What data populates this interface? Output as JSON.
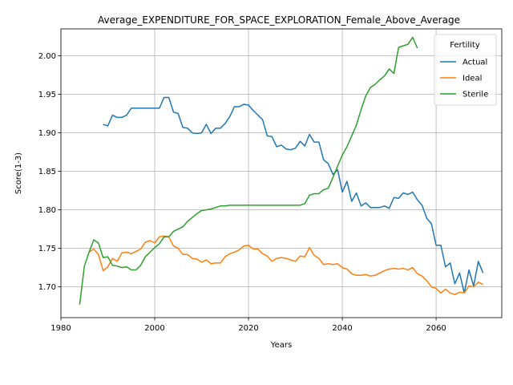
{
  "chart_data": {
    "type": "line",
    "title": "Average_EXPENDITURE_FOR_SPACE_EXPLORATION_Female_Above_Average",
    "xlabel": "Years",
    "ylabel": "Score(1-3)",
    "xlim": [
      1980,
      2074
    ],
    "ylim": [
      1.66,
      2.035
    ],
    "xticks": [
      1980,
      2000,
      2020,
      2040,
      2060
    ],
    "yticks": [
      1.7,
      1.75,
      1.8,
      1.85,
      1.9,
      1.95,
      2.0
    ],
    "xtick_labels": [
      "1980",
      "2000",
      "2020",
      "2040",
      "2060"
    ],
    "ytick_labels": [
      "1.70",
      "1.75",
      "1.80",
      "1.85",
      "1.90",
      "1.95",
      "2.00"
    ],
    "grid": true,
    "legend": {
      "title": "Fertility",
      "position": "top-right"
    },
    "series": [
      {
        "name": "Actual",
        "color": "#1f77b4",
        "x": [
          1989,
          1990,
          1991,
          1992,
          1993,
          1994,
          1995,
          1996,
          1997,
          1998,
          1999,
          2000,
          2001,
          2002,
          2003,
          2004,
          2005,
          2006,
          2007,
          2008,
          2009,
          2010,
          2011,
          2012,
          2013,
          2014,
          2015,
          2016,
          2017,
          2018,
          2019,
          2020,
          2021,
          2022,
          2023,
          2024,
          2025,
          2026,
          2027,
          2028,
          2029,
          2030,
          2031,
          2032,
          2033,
          2034,
          2035,
          2036,
          2037,
          2038,
          2039,
          2040,
          2041,
          2042,
          2043,
          2044,
          2045,
          2046,
          2047,
          2048,
          2049,
          2050,
          2051,
          2052,
          2053,
          2054,
          2055,
          2056,
          2057,
          2058,
          2059,
          2060,
          2061,
          2062,
          2063,
          2064,
          2065,
          2066,
          2067,
          2068,
          2069,
          2070
        ],
        "y": [
          1.911,
          1.909,
          1.923,
          1.92,
          1.92,
          1.923,
          1.932,
          1.932,
          1.932,
          1.932,
          1.932,
          1.932,
          1.932,
          1.946,
          1.946,
          1.927,
          1.925,
          1.907,
          1.906,
          1.9,
          1.899,
          1.9,
          1.911,
          1.899,
          1.906,
          1.906,
          1.912,
          1.921,
          1.934,
          1.934,
          1.937,
          1.936,
          1.929,
          1.923,
          1.917,
          1.896,
          1.895,
          1.882,
          1.884,
          1.879,
          1.878,
          1.88,
          1.889,
          1.883,
          1.898,
          1.888,
          1.888,
          1.865,
          1.86,
          1.846,
          1.852,
          1.823,
          1.837,
          1.811,
          1.822,
          1.805,
          1.809,
          1.803,
          1.803,
          1.803,
          1.805,
          1.802,
          1.816,
          1.815,
          1.822,
          1.82,
          1.823,
          1.813,
          1.806,
          1.789,
          1.782,
          1.754,
          1.754,
          1.726,
          1.731,
          1.704,
          1.718,
          1.692,
          1.722,
          1.701,
          1.733,
          1.718
        ]
      },
      {
        "name": "Ideal",
        "color": "#ff7f0e",
        "x": [
          1986,
          1987,
          1988,
          1989,
          1990,
          1991,
          1992,
          1993,
          1994,
          1995,
          1996,
          1997,
          1998,
          1999,
          2000,
          2001,
          2002,
          2003,
          2004,
          2005,
          2006,
          2007,
          2008,
          2009,
          2010,
          2011,
          2012,
          2013,
          2014,
          2015,
          2016,
          2017,
          2018,
          2019,
          2020,
          2021,
          2022,
          2023,
          2024,
          2025,
          2026,
          2027,
          2028,
          2029,
          2030,
          2031,
          2032,
          2033,
          2034,
          2035,
          2036,
          2037,
          2038,
          2039,
          2040,
          2041,
          2042,
          2043,
          2044,
          2045,
          2046,
          2047,
          2048,
          2049,
          2050,
          2051,
          2052,
          2053,
          2054,
          2055,
          2056,
          2057,
          2058,
          2059,
          2060,
          2061,
          2062,
          2063,
          2064,
          2065,
          2066,
          2067,
          2068,
          2069,
          2070
        ],
        "y": [
          1.745,
          1.749,
          1.742,
          1.721,
          1.726,
          1.737,
          1.733,
          1.744,
          1.745,
          1.743,
          1.746,
          1.749,
          1.758,
          1.76,
          1.757,
          1.765,
          1.766,
          1.765,
          1.753,
          1.75,
          1.742,
          1.742,
          1.737,
          1.736,
          1.732,
          1.735,
          1.73,
          1.731,
          1.731,
          1.739,
          1.743,
          1.745,
          1.748,
          1.753,
          1.754,
          1.749,
          1.749,
          1.743,
          1.74,
          1.733,
          1.737,
          1.738,
          1.737,
          1.735,
          1.733,
          1.74,
          1.739,
          1.751,
          1.741,
          1.737,
          1.729,
          1.73,
          1.729,
          1.73,
          1.725,
          1.723,
          1.717,
          1.715,
          1.715,
          1.716,
          1.714,
          1.715,
          1.718,
          1.721,
          1.723,
          1.724,
          1.723,
          1.724,
          1.722,
          1.725,
          1.717,
          1.714,
          1.708,
          1.7,
          1.698,
          1.692,
          1.697,
          1.692,
          1.69,
          1.693,
          1.692,
          1.701,
          1.7,
          1.706,
          1.703
        ]
      },
      {
        "name": "Sterile",
        "color": "#2ca02c",
        "x": [
          1984,
          1985,
          1986,
          1987,
          1988,
          1989,
          1990,
          1991,
          1992,
          1993,
          1994,
          1995,
          1996,
          1997,
          1998,
          1999,
          2000,
          2001,
          2002,
          2003,
          2004,
          2005,
          2006,
          2007,
          2008,
          2009,
          2010,
          2011,
          2012,
          2013,
          2014,
          2015,
          2016,
          2017,
          2018,
          2019,
          2020,
          2021,
          2022,
          2023,
          2024,
          2025,
          2026,
          2027,
          2028,
          2029,
          2030,
          2031,
          2032,
          2033,
          2034,
          2035,
          2036,
          2037,
          2038,
          2039,
          2040,
          2041,
          2042,
          2043,
          2044,
          2045,
          2046,
          2047,
          2048,
          2049,
          2050,
          2051,
          2052,
          2053,
          2054,
          2055,
          2056
        ],
        "y": [
          1.677,
          1.727,
          1.745,
          1.761,
          1.757,
          1.738,
          1.739,
          1.728,
          1.727,
          1.725,
          1.726,
          1.722,
          1.722,
          1.728,
          1.739,
          1.745,
          1.751,
          1.756,
          1.765,
          1.765,
          1.772,
          1.775,
          1.778,
          1.785,
          1.79,
          1.795,
          1.799,
          1.8,
          1.801,
          1.803,
          1.805,
          1.805,
          1.806,
          1.806,
          1.806,
          1.806,
          1.806,
          1.806,
          1.806,
          1.806,
          1.806,
          1.806,
          1.806,
          1.806,
          1.806,
          1.806,
          1.806,
          1.806,
          1.808,
          1.819,
          1.821,
          1.821,
          1.826,
          1.828,
          1.842,
          1.857,
          1.871,
          1.882,
          1.896,
          1.91,
          1.93,
          1.948,
          1.959,
          1.963,
          1.969,
          1.974,
          1.983,
          1.977,
          2.011,
          2.013,
          2.015,
          2.024,
          2.01
        ]
      }
    ]
  }
}
